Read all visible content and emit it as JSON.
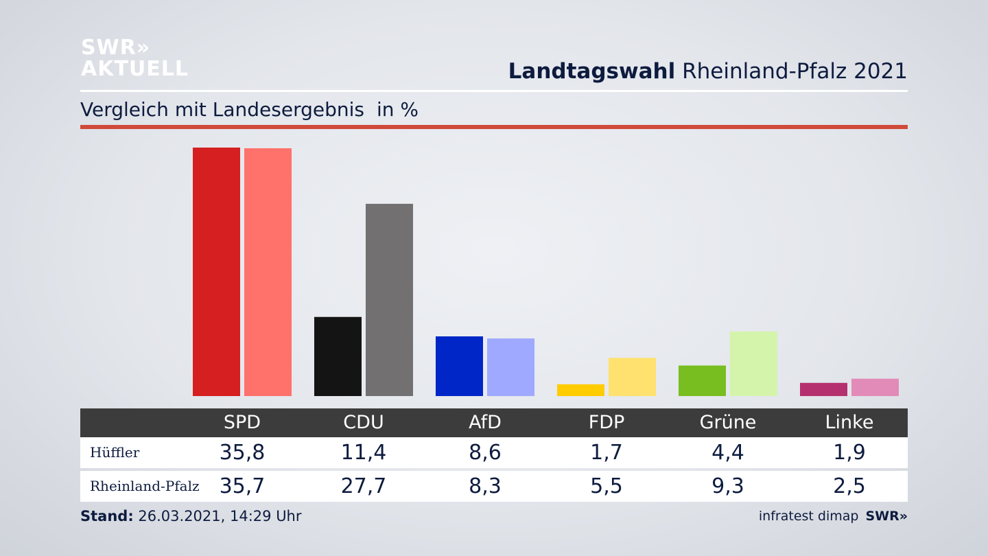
{
  "logo": {
    "line1": "SWR»",
    "line2": "AKTUELL"
  },
  "header": {
    "title_bold": "Landtagswahl",
    "title_rest": "Rheinland-Pfalz 2021"
  },
  "subtitle": {
    "text": "Vergleich mit Landesergebnis",
    "unit": "in %"
  },
  "colors": {
    "accent_rule": "#d04a3a",
    "table_header": "#3c3c3c"
  },
  "chart_data": {
    "type": "bar",
    "title": "Vergleich mit Landesergebnis",
    "ylabel": "in %",
    "grid": false,
    "categories": [
      "SPD",
      "CDU",
      "AfD",
      "FDP",
      "Grüne",
      "Linke"
    ],
    "series": [
      {
        "name": "Hüffler",
        "values": [
          35.8,
          11.4,
          8.6,
          1.7,
          4.4,
          1.9
        ],
        "display": [
          "35,8",
          "11,4",
          "8,6",
          "1,7",
          "4,4",
          "1,9"
        ],
        "colors": [
          "#d51f20",
          "#141414",
          "#0026c8",
          "#ffcc00",
          "#78be20",
          "#b5306e"
        ]
      },
      {
        "name": "Rheinland-Pfalz",
        "values": [
          35.7,
          27.7,
          8.3,
          5.5,
          9.3,
          2.5
        ],
        "display": [
          "35,7",
          "27,7",
          "8,3",
          "5,5",
          "9,3",
          "2,5"
        ],
        "colors": [
          "#ff716b",
          "#727070",
          "#9fa9ff",
          "#ffe16f",
          "#d4f4ab",
          "#e28ab8"
        ]
      }
    ]
  },
  "footer": {
    "stand_label": "Stand:",
    "stand_value": "26.03.2021, 14:29 Uhr",
    "source": "infratest dimap",
    "brand": "SWR»"
  }
}
